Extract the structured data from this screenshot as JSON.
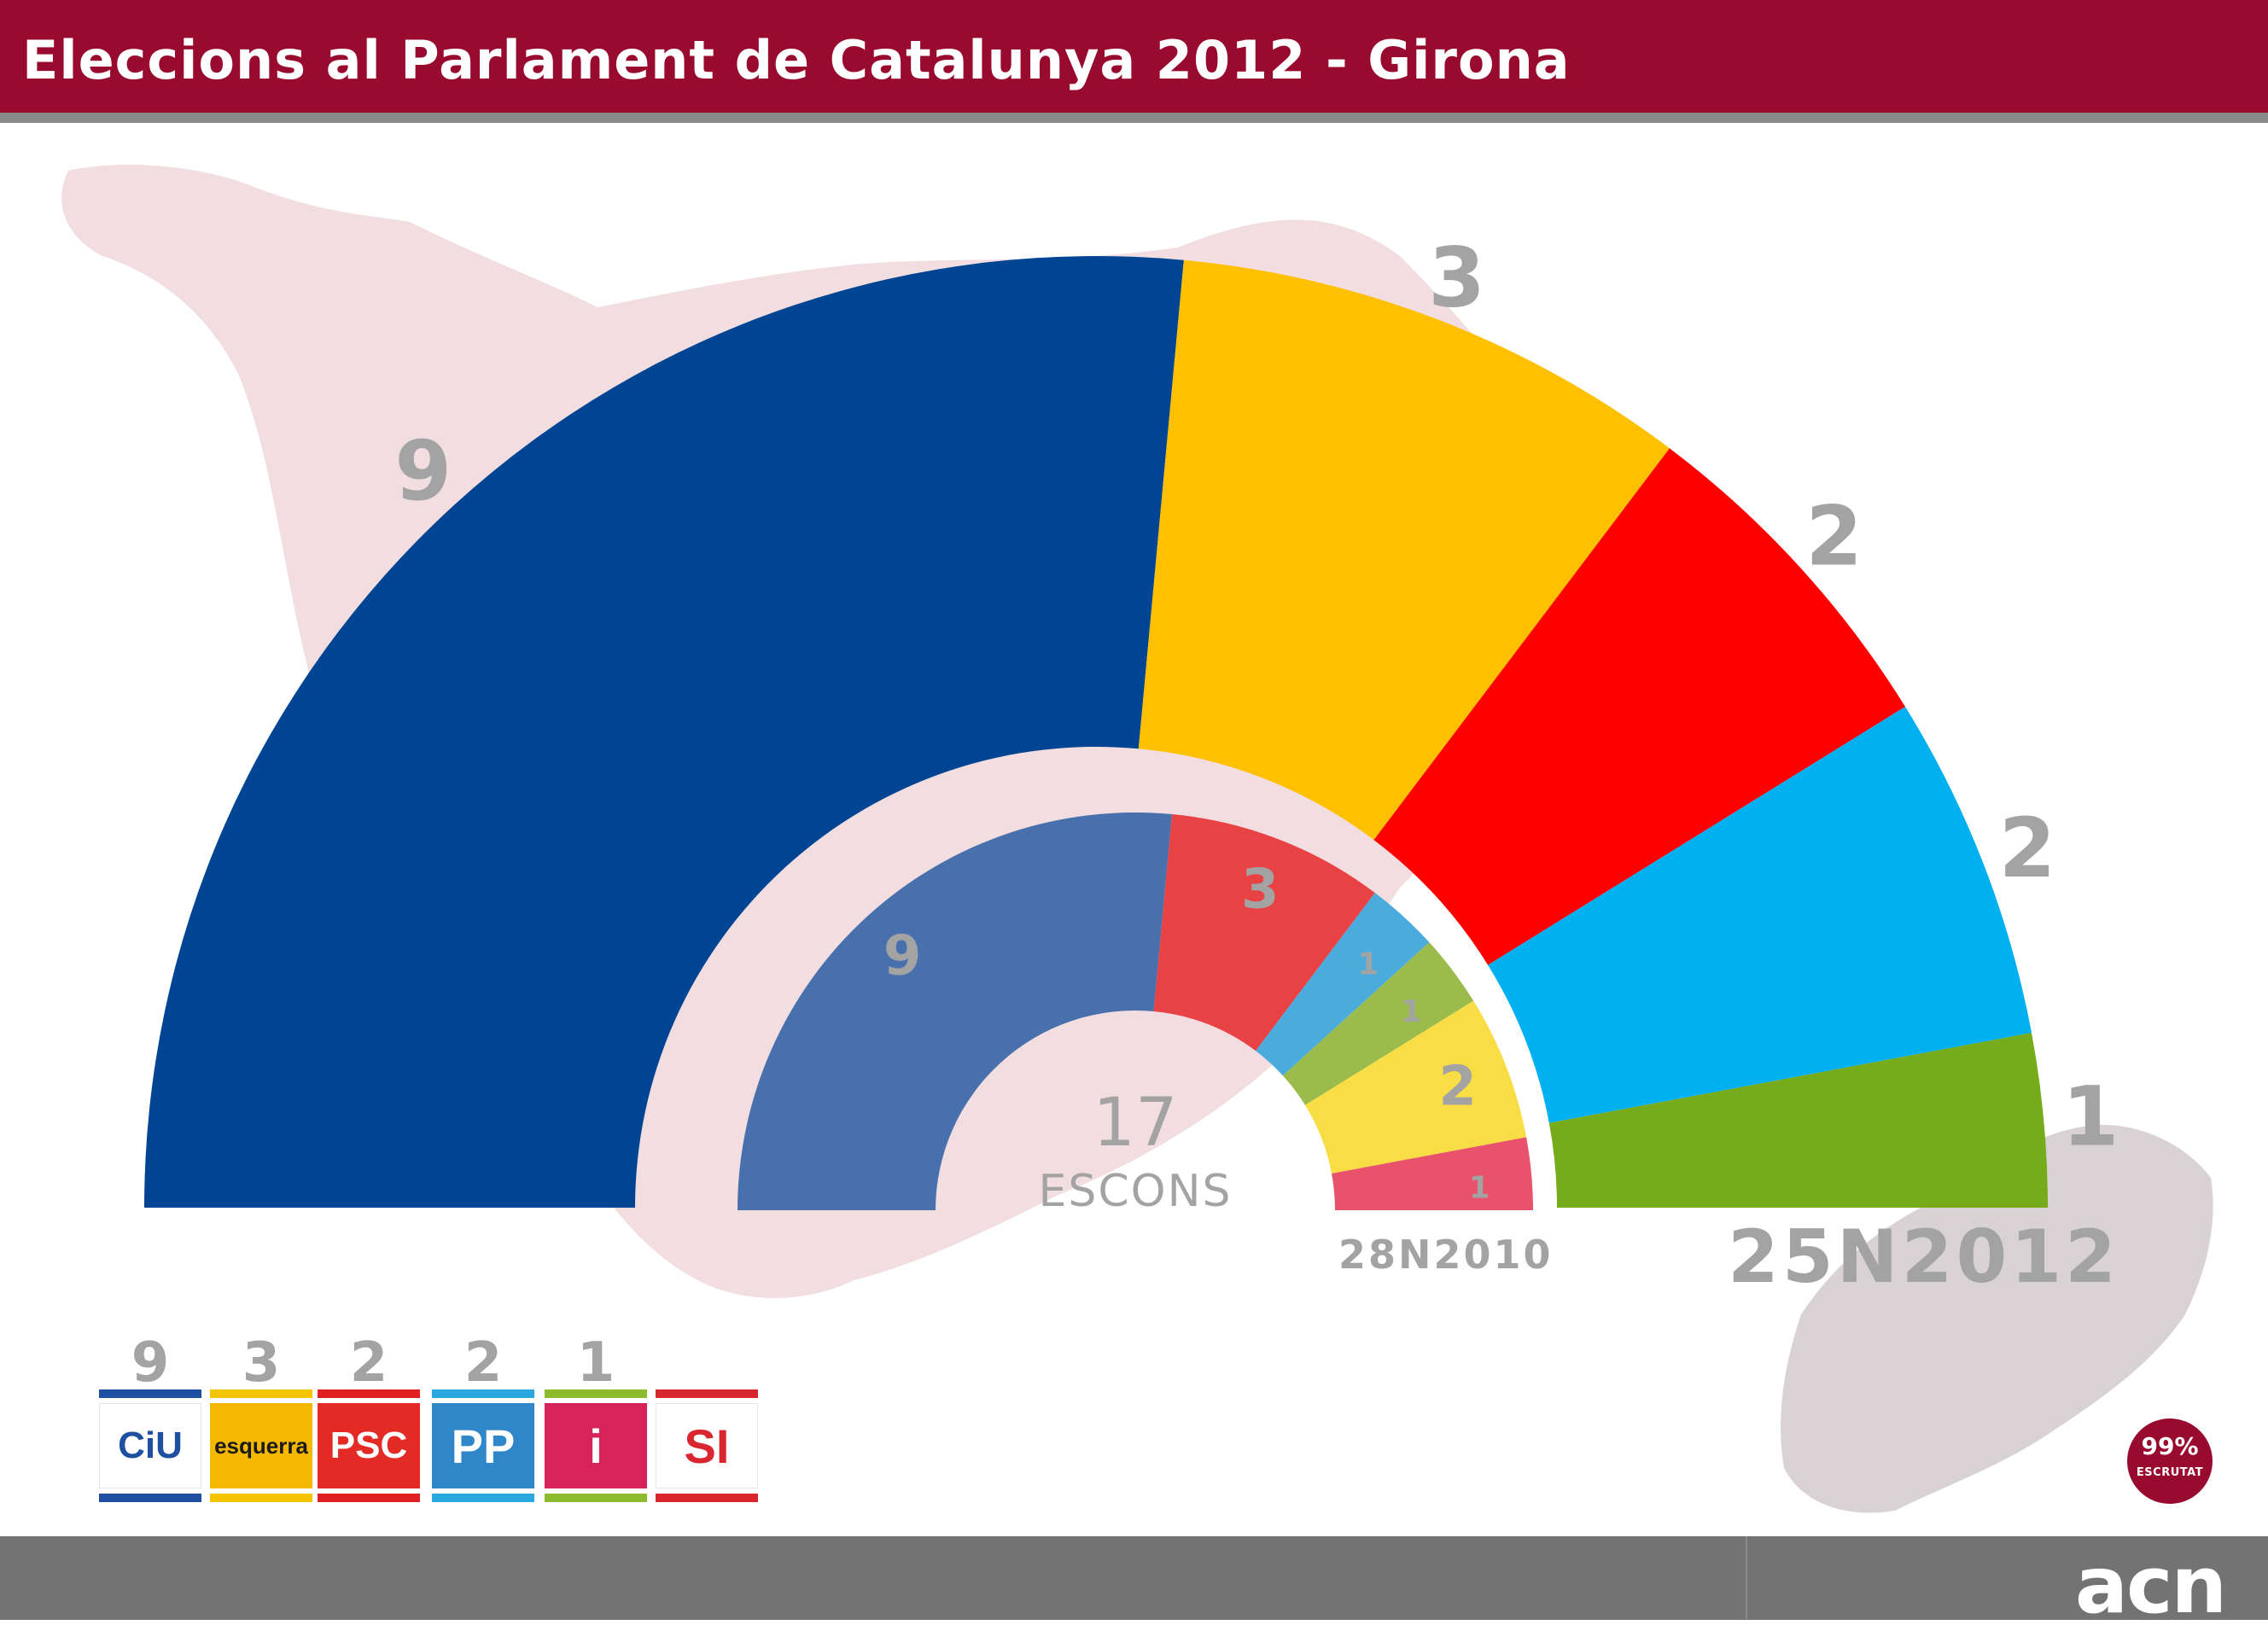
{
  "header": {
    "title": "Eleccions al Parlament de Catalunya 2012 - Girona"
  },
  "chart_data": [
    {
      "type": "pie",
      "subtype": "half-donut",
      "label": "25N2012",
      "series": [
        {
          "name": "CiU",
          "value": 9,
          "color": "#004494"
        },
        {
          "name": "esquerra",
          "value": 3,
          "color": "#ffc000"
        },
        {
          "name": "PSC",
          "value": 2,
          "color": "#ff0000"
        },
        {
          "name": "PP",
          "value": 2,
          "color": "#00b0f0"
        },
        {
          "name": "ICV-EUiA",
          "value": 1,
          "color": "#76ab1b"
        }
      ]
    },
    {
      "type": "pie",
      "subtype": "half-donut",
      "label": "28N2010",
      "center_value": "17",
      "center_label": "ESCONS",
      "series": [
        {
          "name": "CiU",
          "value": 9,
          "color": "#4770ad"
        },
        {
          "name": "PSC",
          "value": 3,
          "color": "#e84245"
        },
        {
          "name": "PP",
          "value": 1,
          "color": "#4aacdc"
        },
        {
          "name": "ICV-EUiA",
          "value": 1,
          "color": "#9bbb4c"
        },
        {
          "name": "esquerra",
          "value": 2,
          "color": "#f9dd45"
        },
        {
          "name": "SI",
          "value": 1,
          "color": "#e8526b"
        }
      ]
    }
  ],
  "legend": [
    {
      "party": "CiU",
      "logo_text": "CiU",
      "seats": "9",
      "bar_color": "#1f4fa0",
      "logo_bg": "#ffffff",
      "logo_color": "#1f4fa0"
    },
    {
      "party": "esquerra",
      "logo_text": "esquerra",
      "seats": "3",
      "bar_color": "#f5c400",
      "logo_bg": "#f5b800",
      "logo_color": "#1a1a1a"
    },
    {
      "party": "PSC",
      "logo_text": "PSC",
      "seats": "2",
      "bar_color": "#e02020",
      "logo_bg": "#e42a25",
      "logo_color": "#ffffff"
    },
    {
      "party": "PP",
      "logo_text": "PP",
      "seats": "2",
      "bar_color": "#29a8e0",
      "logo_bg": "#2f86c8",
      "logo_color": "#ffffff"
    },
    {
      "party": "ICV-EUiA",
      "logo_text": "i",
      "seats": "1",
      "bar_color": "#8dbb2e",
      "logo_bg": "#d6245a",
      "logo_color": "#ffffff"
    },
    {
      "party": "SI",
      "logo_text": "SI",
      "seats": "",
      "bar_color": "#d9262f",
      "logo_bg": "#ffffff",
      "logo_color": "#d9262f"
    }
  ],
  "badge": {
    "percent": "99%",
    "label": "ESCRUTAT"
  },
  "footer": {
    "logo": "acn"
  },
  "colors": {
    "header_bg": "#990a2f",
    "footer_bg": "#737373",
    "map": "#f2dde0",
    "label_gray": "#a3a3a3"
  }
}
